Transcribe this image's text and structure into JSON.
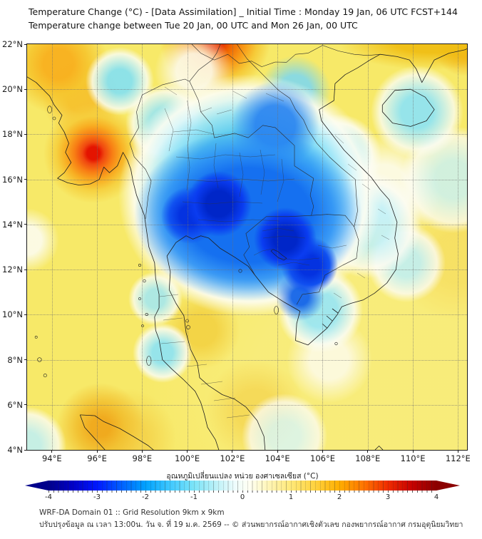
{
  "header": {
    "title_line1": "Temperature Change (°C) - [Data Assimilation] _ Initial Time : Monday 19 Jan, 06 UTC FCST+144",
    "title_line2": "Temperature change between Tue 20 Jan, 00 UTC and Mon 26 Jan, 00 UTC"
  },
  "chart_data": {
    "type": "heatmap",
    "title": "Temperature Change (°C) - [Data Assimilation] _ Initial Time : Monday 19 Jan, 06 UTC FCST+144",
    "subtitle": "Temperature change between Tue 20 Jan, 00 UTC and Mon 26 Jan, 00 UTC",
    "region": "Thailand / Indochina (WRF-DA domain)",
    "grid": "dotted",
    "x_axis": {
      "lim": [
        92.9,
        112.4
      ],
      "ticks": [
        {
          "value": 94,
          "label": "94°E"
        },
        {
          "value": 96,
          "label": "96°E"
        },
        {
          "value": 98,
          "label": "98°E"
        },
        {
          "value": 100,
          "label": "100°E"
        },
        {
          "value": 102,
          "label": "102°E"
        },
        {
          "value": 104,
          "label": "104°E"
        },
        {
          "value": 106,
          "label": "106°E"
        },
        {
          "value": 108,
          "label": "108°E"
        },
        {
          "value": 110,
          "label": "110°E"
        },
        {
          "value": 112,
          "label": "112°E"
        }
      ]
    },
    "y_axis": {
      "lim": [
        4,
        22
      ],
      "ticks": [
        {
          "value": 22,
          "label": "22°N"
        },
        {
          "value": 20,
          "label": "20°N"
        },
        {
          "value": 18,
          "label": "18°N"
        },
        {
          "value": 16,
          "label": "16°N"
        },
        {
          "value": 14,
          "label": "14°N"
        },
        {
          "value": 12,
          "label": "12°N"
        },
        {
          "value": 10,
          "label": "10°N"
        },
        {
          "value": 8,
          "label": "8°N"
        },
        {
          "value": 6,
          "label": "6°N"
        },
        {
          "value": 4,
          "label": "4°N"
        }
      ]
    },
    "colorbar": {
      "label": "อุณหภูมิเปลี่ยนแปลง หน่วย องศาเซลเซียส (°C)",
      "ticks": [
        -4,
        -3,
        -2,
        -1,
        0,
        1,
        2,
        3,
        4
      ],
      "lim": [
        -4,
        4
      ],
      "arrow_left_color": "#00008b",
      "arrow_right_color": "#8b0000",
      "palette": [
        {
          "v": -4,
          "c": "#00008b"
        },
        {
          "v": -3.5,
          "c": "#0000c8"
        },
        {
          "v": -3,
          "c": "#0018ff"
        },
        {
          "v": -2.5,
          "c": "#0060ff"
        },
        {
          "v": -2,
          "c": "#00a2ff"
        },
        {
          "v": -1.5,
          "c": "#3fc8ff"
        },
        {
          "v": -1,
          "c": "#7ce4f8"
        },
        {
          "v": -0.5,
          "c": "#c2f2f8"
        },
        {
          "v": -0.15,
          "c": "#eefcfc"
        },
        {
          "v": 0.15,
          "c": "#fffff2"
        },
        {
          "v": 0.5,
          "c": "#fff6bc"
        },
        {
          "v": 1,
          "c": "#ffe878"
        },
        {
          "v": 1.5,
          "c": "#ffd23e"
        },
        {
          "v": 2,
          "c": "#ffae00"
        },
        {
          "v": 2.5,
          "c": "#ff7400"
        },
        {
          "v": 3,
          "c": "#ef2c00"
        },
        {
          "v": 3.5,
          "c": "#c60000"
        },
        {
          "v": 4,
          "c": "#8b0000"
        }
      ]
    },
    "anomaly_features": [
      {
        "name": "strong-cooling-central-thailand",
        "lon": 101.4,
        "lat": 14.9,
        "value_c": -4
      },
      {
        "name": "strong-cooling-cambodia",
        "lon": 104.3,
        "lat": 13.3,
        "value_c": -4
      },
      {
        "name": "cooling-north-thailand-laos",
        "lon": 103.9,
        "lat": 18.4,
        "value_c": -2
      },
      {
        "name": "cooling-south-vietnam-delta",
        "lon": 105.4,
        "lat": 12.2,
        "value_c": -3
      },
      {
        "name": "warming-central-myanmar",
        "lon": 95.8,
        "lat": 17.2,
        "value_c": 3
      },
      {
        "name": "warming-yunnan-border",
        "lon": 101.2,
        "lat": 22.2,
        "value_c": 3
      },
      {
        "name": "warming-northwest-myanmar",
        "lon": 94.3,
        "lat": 21.1,
        "value_c": 2
      },
      {
        "name": "warming-south-china-coast",
        "lon": 110.5,
        "lat": 21.9,
        "value_c": 2
      },
      {
        "name": "warming-north-sumatra",
        "lon": 96.1,
        "lat": 5.0,
        "value_c": 2
      },
      {
        "name": "slight-cooling-andaman-coast",
        "lon": 98.8,
        "lat": 8.4,
        "value_c": -1
      },
      {
        "name": "slight-cooling-hainan",
        "lon": 110.2,
        "lat": 19.0,
        "value_c": -1
      },
      {
        "name": "slight-cooling-northwest-thailand-border",
        "lon": 97.0,
        "lat": 20.4,
        "value_c": -1
      },
      {
        "name": "mild-warming-background-sea",
        "value_c": 0.8
      }
    ]
  },
  "footer": {
    "line1": "WRF-DA Domain 01 :: Grid Resolution 9km x 9km",
    "line2": "ปรับปรุงข้อมูล ณ เวลา 13:00น. วัน จ. ที่ 19 ม.ค. 2569 -- © ส่วนพยากรณ์อากาศเชิงตัวเลข กองพยากรณ์อากาศ กรมอุตุนิยมวิทยา"
  }
}
